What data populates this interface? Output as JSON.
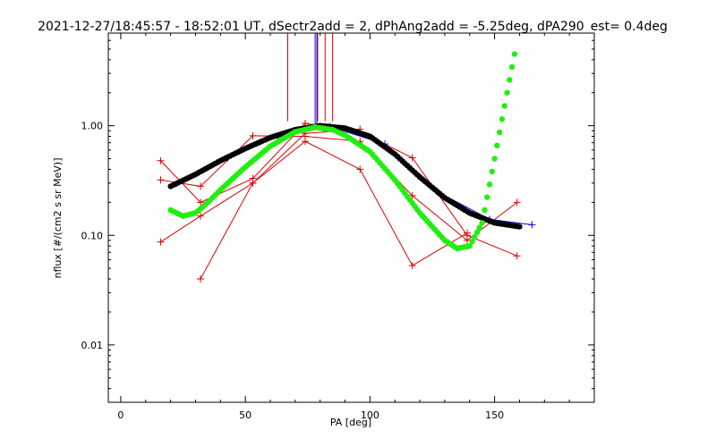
{
  "chart_data": {
    "type": "scatter",
    "title": "2021-12-27/18:45:57 - 18:52:01 UT, dSectr2add = 2, dPhAng2add = -5.25deg, dPA290_est=   0.4deg",
    "xlabel": "PA [deg]",
    "ylabel": "nflux [#/(cm2 s sr MeV)]",
    "xlim": [
      -5,
      190
    ],
    "ylim": [
      0.003,
      7
    ],
    "yscale": "log",
    "xticks": [
      0,
      50,
      100,
      150
    ],
    "xtick_labels": [
      "0",
      "50",
      "100",
      "150"
    ],
    "yticks": [
      0.01,
      0.1,
      1.0
    ],
    "ytick_labels": [
      "0.01",
      "0.10",
      "1.00"
    ],
    "colors": {
      "red": "#dd0000",
      "blue": "#0000dd",
      "black": "#000000",
      "green": "#22ee11"
    },
    "vertical_lines": {
      "red_x": [
        67,
        82,
        85,
        79
      ],
      "blue_x": [
        78
      ],
      "top_value": 7,
      "red_bottom_value": 1.1,
      "blue_bottom_value": 1.0
    },
    "series": [
      {
        "color": "red",
        "style": "line+plus",
        "x": [
          16,
          32,
          53,
          74,
          96,
          117,
          139,
          159
        ],
        "y": [
          0.48,
          0.2,
          0.33,
          1.05,
          0.88,
          0.51,
          0.1,
          0.065
        ]
      },
      {
        "color": "red",
        "style": "line+plus",
        "x": [
          16,
          32,
          53,
          74,
          96,
          117,
          139,
          159
        ],
        "y": [
          0.32,
          0.28,
          0.81,
          0.8,
          0.72,
          0.23,
          0.09,
          0.2
        ]
      },
      {
        "color": "red",
        "style": "line+plus",
        "x": [
          16,
          32,
          53,
          74,
          96,
          117,
          139
        ],
        "y": [
          0.087,
          0.15,
          0.3,
          0.72,
          0.4,
          0.053,
          0.105
        ]
      },
      {
        "color": "red",
        "style": "line+plus",
        "x": [
          32,
          53,
          74,
          96
        ],
        "y": [
          0.04,
          0.3,
          0.85,
          0.93
        ]
      },
      {
        "color": "blue",
        "style": "line+plus",
        "x": [
          43,
          63,
          84,
          106,
          127,
          148,
          165
        ],
        "y": [
          0.51,
          0.8,
          0.98,
          0.68,
          0.25,
          0.14,
          0.125
        ]
      },
      {
        "color": "black",
        "style": "dots",
        "x": [
          20,
          30,
          40,
          50,
          60,
          70,
          80,
          90,
          100,
          110,
          120,
          130,
          140,
          150,
          160
        ],
        "y": [
          0.28,
          0.36,
          0.48,
          0.62,
          0.78,
          0.92,
          1.0,
          0.95,
          0.8,
          0.55,
          0.34,
          0.22,
          0.16,
          0.13,
          0.12
        ]
      },
      {
        "color": "green",
        "style": "dots",
        "x": [
          20,
          25,
          30,
          35,
          40,
          50,
          60,
          70,
          78,
          85,
          90,
          100,
          110,
          120,
          125,
          130,
          135,
          140,
          145,
          150,
          155,
          158
        ],
        "y": [
          0.17,
          0.15,
          0.16,
          0.2,
          0.26,
          0.42,
          0.65,
          0.88,
          0.97,
          0.92,
          0.82,
          0.58,
          0.32,
          0.16,
          0.12,
          0.09,
          0.076,
          0.08,
          0.13,
          0.5,
          2.0,
          4.5
        ]
      }
    ]
  }
}
